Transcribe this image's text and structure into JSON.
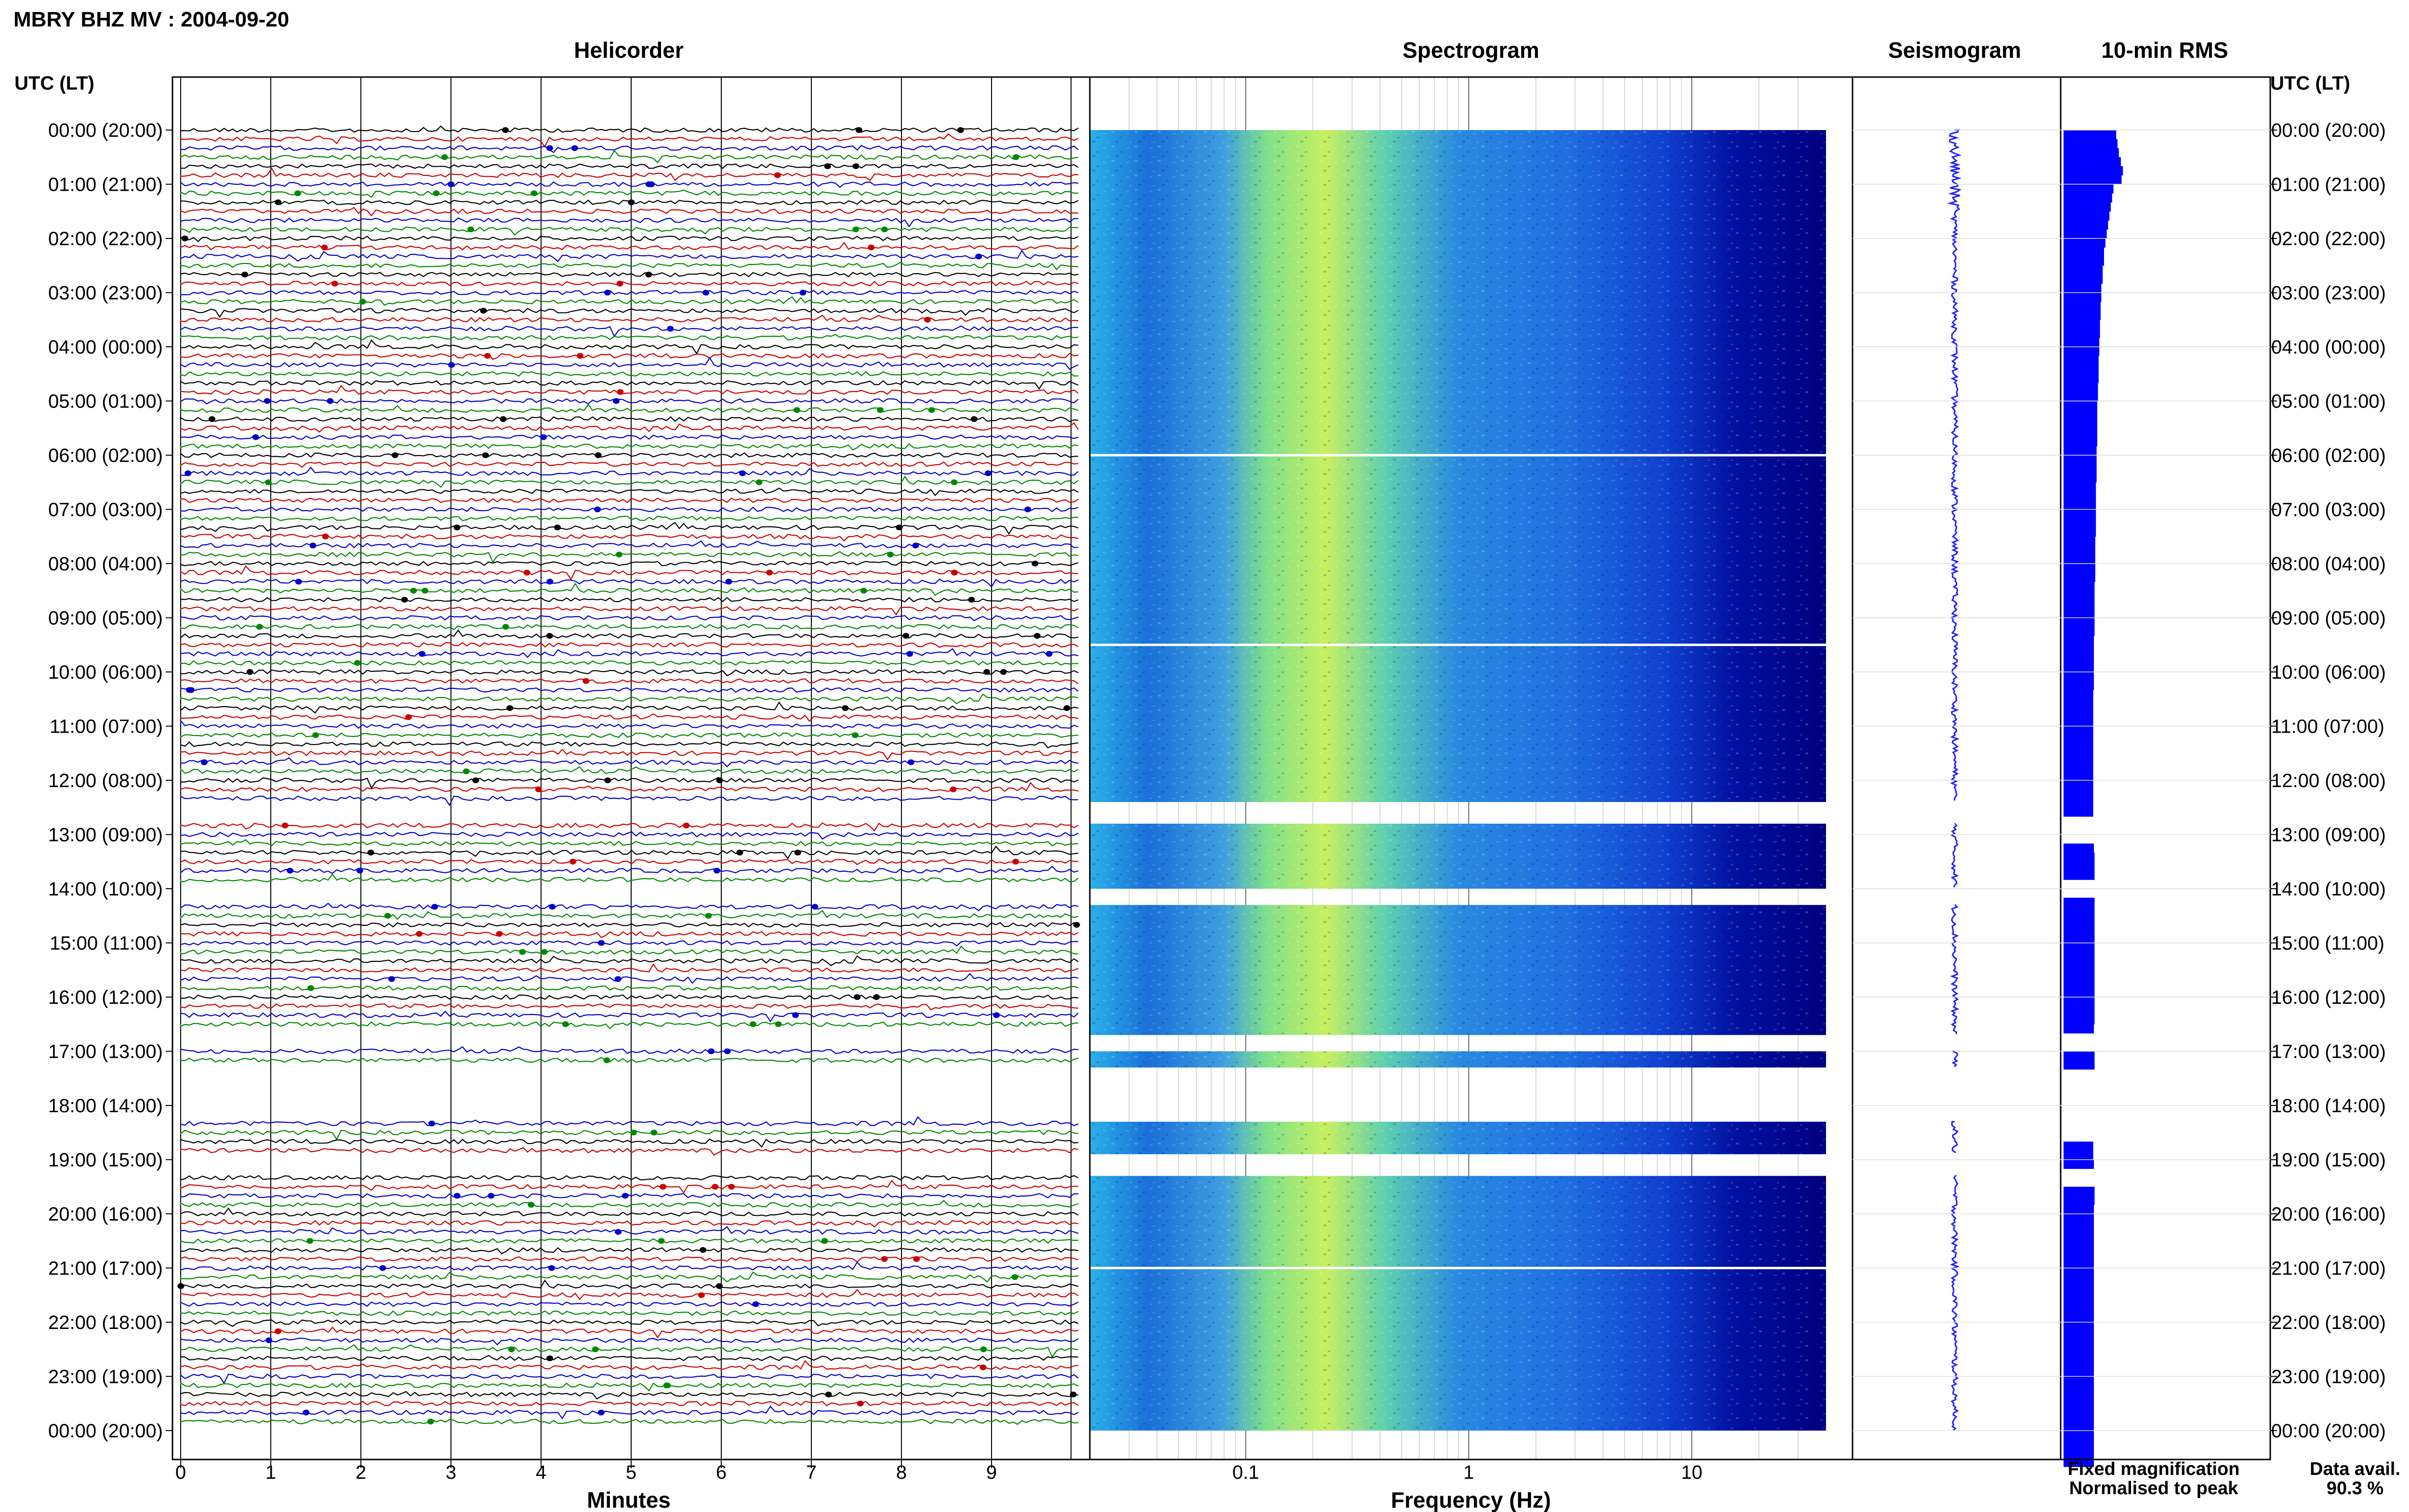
{
  "title": "MBRY BHZ MV : 2004-09-20",
  "panels": {
    "helicorder": "Helicorder",
    "spectrogram": "Spectrogram",
    "seismogram": "Seismogram",
    "rms": "10-min RMS"
  },
  "utc_label": "UTC (LT)",
  "hour_labels": [
    "00:00 (20:00)",
    "01:00 (21:00)",
    "02:00 (22:00)",
    "03:00 (23:00)",
    "04:00 (00:00)",
    "05:00 (01:00)",
    "06:00 (02:00)",
    "07:00 (03:00)",
    "08:00 (04:00)",
    "09:00 (05:00)",
    "10:00 (06:00)",
    "11:00 (07:00)",
    "12:00 (08:00)",
    "13:00 (09:00)",
    "14:00 (10:00)",
    "15:00 (11:00)",
    "16:00 (12:00)",
    "17:00 (13:00)",
    "18:00 (14:00)",
    "19:00 (15:00)",
    "20:00 (16:00)",
    "21:00 (17:00)",
    "22:00 (18:00)",
    "23:00 (19:00)",
    "00:00 (20:00)"
  ],
  "x_labels": {
    "helicorder": "Minutes",
    "spectrogram": "Frequency (Hz)"
  },
  "legend": {
    "fixed": "Fixed magnification",
    "normalised": "Normalised to peak",
    "fixed_color": "#0000ff",
    "normalised_color": "#ff0000"
  },
  "data_avail": {
    "label": "Data avail.",
    "value": "90.3 %"
  },
  "colors": {
    "trace_cycle": [
      "#000000",
      "#cc0000",
      "#0000cc",
      "#008800"
    ],
    "spec_low": "#000080",
    "spec_mid": "#1e90ff",
    "spec_high": "#ffff40",
    "rms_bar": "#0000ff"
  },
  "chart_data": {
    "type": "heatmap",
    "title": "MBRY BHZ MV : 2004-09-20",
    "panels": [
      "Helicorder",
      "Spectrogram",
      "Seismogram",
      "10-min RMS"
    ],
    "helicorder": {
      "x_axis": {
        "label": "Minutes",
        "ticks": [
          0,
          1,
          2,
          3,
          4,
          5,
          6,
          7,
          8,
          9
        ],
        "range": [
          0,
          10
        ]
      },
      "y_axis": {
        "label": "UTC (LT)",
        "range_hours": [
          0,
          24
        ]
      },
      "rows": 144,
      "row_minutes": 10
    },
    "spectrogram": {
      "x_axis": {
        "label": "Frequency (Hz)",
        "scale": "log",
        "ticks": [
          0.1,
          1,
          10
        ],
        "tick_labels": [
          "0.1",
          "1",
          "10"
        ],
        "range": [
          0.02,
          40
        ]
      },
      "y_axis": {
        "range_hours": [
          0,
          24
        ]
      }
    },
    "data_gaps_hours": [
      [
        12.4,
        12.8
      ],
      [
        14.0,
        14.3
      ],
      [
        16.7,
        17.0
      ],
      [
        17.3,
        18.3
      ],
      [
        18.9,
        19.3
      ]
    ],
    "rms_10min": {
      "note": "relative amplitude, per 10-min window",
      "values": [
        0.78,
        0.8,
        0.82,
        0.85,
        0.88,
        0.86,
        0.74,
        0.72,
        0.7,
        0.68,
        0.66,
        0.64,
        0.62,
        0.6,
        0.6,
        0.58,
        0.58,
        0.56,
        0.56,
        0.55,
        0.55,
        0.54,
        0.54,
        0.53,
        0.53,
        0.52,
        0.52,
        0.52,
        0.51,
        0.51,
        0.5,
        0.5,
        0.5,
        0.5,
        0.5,
        0.49,
        0.49,
        0.49,
        0.49,
        0.48,
        0.48,
        0.48,
        0.48,
        0.48,
        0.48,
        0.47,
        0.47,
        0.47,
        0.47,
        0.47,
        0.46,
        0.46,
        0.46,
        0.46,
        0.46,
        0.46,
        0.45,
        0.45,
        0.45,
        0.45,
        0.45,
        0.45,
        0.44,
        0.44,
        0.44,
        0.44,
        0.44,
        0.44,
        0.44,
        0.44,
        0.44,
        0.44,
        0.44,
        0.44,
        0.44,
        0.44,
        null,
        null,
        null,
        0.45,
        0.46,
        0.46,
        0.46,
        null,
        null,
        0.46,
        0.46,
        0.46,
        0.46,
        0.46,
        0.46,
        0.46,
        0.46,
        0.46,
        0.46,
        0.46,
        0.46,
        0.46,
        0.46,
        0.45,
        null,
        null,
        0.46,
        0.46,
        null,
        null,
        null,
        null,
        null,
        null,
        null,
        null,
        0.44,
        0.44,
        0.45,
        null,
        null,
        0.46,
        0.46,
        0.45,
        0.45,
        0.45,
        0.45,
        0.45,
        0.45,
        0.45,
        0.45,
        0.45,
        0.45,
        0.45,
        0.45,
        0.45,
        0.45,
        0.45,
        0.45,
        0.45,
        0.45,
        0.45,
        0.45,
        0.45,
        0.45,
        0.45,
        0.45,
        0.45,
        0.45,
        0.45,
        0.45,
        0.45
      ]
    },
    "data_availability_percent": 90.3
  }
}
